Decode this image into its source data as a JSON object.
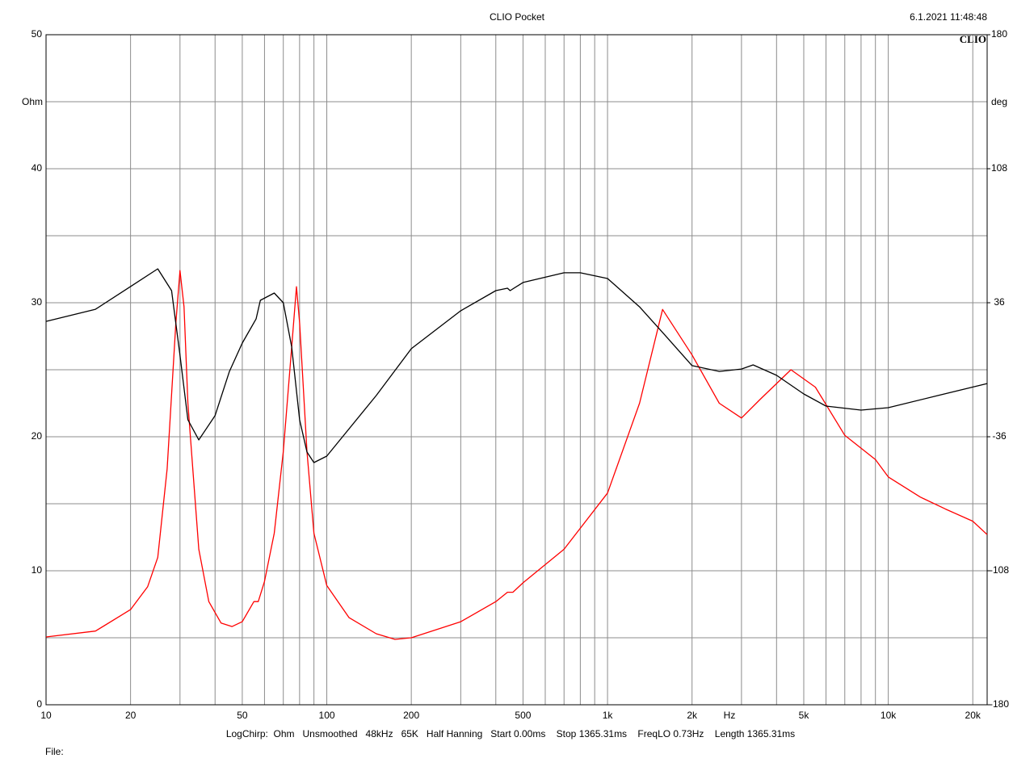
{
  "chart_data": {
    "type": "line",
    "title": "CLIO Pocket",
    "timestamp": "6.1.2021 11:48:48",
    "logo": "CLIO",
    "footer": "LogChirp:  Ohm   Unsmoothed   48kHz   65K   Half Hanning   Start 0.00ms    Stop 1365.31ms    FreqLO 0.73Hz    Length 1365.31ms",
    "file_label": "File:",
    "x_label": "Hz",
    "y_label": "Ohm",
    "y2_label": "deg",
    "x_log": true,
    "grid": true,
    "xlim": [
      10,
      22500
    ],
    "xticks": [
      10,
      20,
      50,
      100,
      200,
      500,
      {
        "value": 1000,
        "label": "1k"
      },
      {
        "value": 2000,
        "label": "2k"
      },
      {
        "value": 5000,
        "label": "5k"
      },
      {
        "value": 10000,
        "label": "10k"
      },
      {
        "value": 20000,
        "label": "20k"
      }
    ],
    "x_minor_ticks": [
      30,
      40,
      60,
      70,
      80,
      90,
      300,
      400,
      600,
      700,
      800,
      900,
      3000,
      4000,
      6000,
      7000,
      8000,
      9000
    ],
    "ylim": [
      0,
      50
    ],
    "yticks": [
      0,
      10,
      20,
      30,
      40,
      50
    ],
    "y_minor_ticks": [
      5,
      15,
      25,
      35,
      45
    ],
    "y2lim": [
      -180,
      180
    ],
    "y2ticks": [
      -180,
      -108,
      -36,
      36,
      108,
      180
    ],
    "series": [
      {
        "name": "Impedance",
        "color": "#ff0000",
        "x": [
          10,
          15,
          20,
          23,
          25,
          27,
          29,
          30,
          31,
          32,
          35,
          38,
          42,
          46,
          50,
          55,
          57,
          60,
          65,
          70,
          75,
          78,
          80,
          85,
          90,
          100,
          120,
          150,
          175,
          200,
          300,
          400,
          440,
          460,
          500,
          700,
          1000,
          1300,
          1570,
          2000,
          2500,
          3000,
          3500,
          4500,
          5500,
          7000,
          9000,
          10000,
          13000,
          16000,
          20000,
          22500
        ],
        "values": [
          5.06,
          5.5,
          7.1,
          8.8,
          11,
          17.6,
          28.5,
          32.4,
          29.7,
          22.5,
          11.6,
          7.7,
          6.1,
          5.84,
          6.2,
          7.7,
          7.7,
          9.2,
          12.8,
          18.9,
          26.7,
          31.2,
          28.5,
          18.9,
          12.8,
          8.9,
          6.5,
          5.3,
          4.88,
          5.0,
          6.2,
          7.7,
          8.4,
          8.4,
          9.1,
          11.6,
          15.8,
          22.5,
          29.5,
          26.1,
          22.5,
          21.4,
          22.8,
          25.0,
          23.7,
          20.1,
          18.3,
          17.0,
          15.5,
          14.6,
          13.7,
          12.7
        ]
      },
      {
        "name": "Phase",
        "color": "#000000",
        "axis": "y2",
        "x": [
          10,
          15,
          20,
          25,
          28,
          30,
          32,
          35,
          40,
          45,
          50,
          56,
          58,
          65,
          70,
          75,
          80,
          85,
          90,
          100,
          150,
          200,
          300,
          400,
          440,
          450,
          500,
          700,
          800,
          1000,
          1300,
          1600,
          2000,
          2500,
          3000,
          3300,
          4000,
          5000,
          6000,
          8000,
          10000,
          15000,
          22500
        ],
        "values": [
          26.0,
          32.5,
          44.7,
          54.2,
          42.5,
          7.8,
          -26.9,
          -37.7,
          -24.7,
          -0.9,
          14.3,
          27.3,
          37.3,
          41.2,
          36.0,
          12.2,
          -26.9,
          -44.2,
          -49.9,
          -46.4,
          -13.9,
          11.3,
          31.7,
          42.5,
          43.8,
          42.5,
          46.9,
          52.1,
          52.1,
          49.0,
          33.8,
          18.7,
          2.2,
          -0.9,
          0.4,
          2.6,
          -3.0,
          -13.0,
          -19.5,
          -21.7,
          -20.4,
          -13.9,
          -7.4
        ]
      }
    ]
  }
}
